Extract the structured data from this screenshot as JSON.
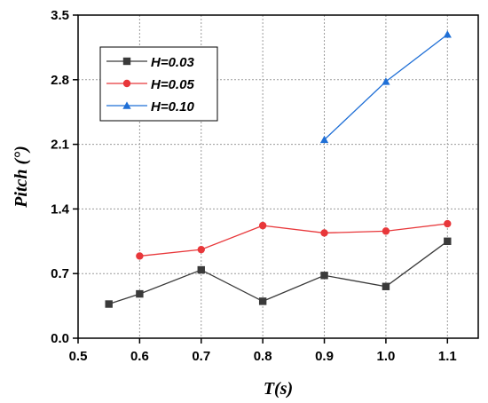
{
  "chart_data": {
    "type": "line",
    "xlabel": "T(s)",
    "ylabel": "Pitch (°)",
    "xlim": [
      0.5,
      1.15
    ],
    "ylim": [
      0.0,
      3.5
    ],
    "xticks": [
      "0.5",
      "0.6",
      "0.7",
      "0.8",
      "0.9",
      "1.0",
      "1.1"
    ],
    "yticks": [
      "0.0",
      "0.7",
      "1.4",
      "2.1",
      "2.8",
      "3.5"
    ],
    "grid": true,
    "legend_position": "top-left",
    "series": [
      {
        "name": "H=0.03",
        "color": "#3a3a3a",
        "marker": "square",
        "x": [
          0.55,
          0.6,
          0.7,
          0.8,
          0.9,
          1.0,
          1.1
        ],
        "y": [
          0.37,
          0.48,
          0.74,
          0.4,
          0.68,
          0.56,
          1.05
        ]
      },
      {
        "name": "H=0.05",
        "color": "#e8373a",
        "marker": "circle",
        "x": [
          0.6,
          0.7,
          0.8,
          0.9,
          1.0,
          1.1
        ],
        "y": [
          0.89,
          0.96,
          1.22,
          1.14,
          1.16,
          1.24
        ]
      },
      {
        "name": "H=0.10",
        "color": "#1f6fd6",
        "marker": "triangle",
        "x": [
          0.9,
          1.0,
          1.1
        ],
        "y": [
          2.15,
          2.78,
          3.29
        ]
      }
    ]
  }
}
